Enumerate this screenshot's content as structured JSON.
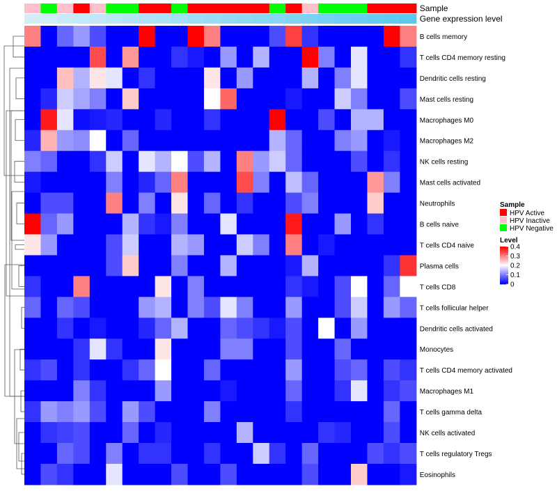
{
  "chart_data": {
    "type": "heatmap",
    "annotation_labels": {
      "sample": "Sample",
      "gene": "Gene expression level"
    },
    "sample_groups": [
      "Inactive",
      "Negative",
      "Inactive",
      "Active",
      "Inactive",
      "Negative",
      "Negative",
      "Active",
      "Active",
      "Negative",
      "Active",
      "Active",
      "Active",
      "Active",
      "Active",
      "Negative",
      "Active",
      "Inactive",
      "Negative",
      "Negative",
      "Negative",
      "Active",
      "Active",
      "Active"
    ],
    "sample_colors": {
      "Active": "#ff0000",
      "Inactive": "#ffc0cb",
      "Negative": "#00ff00"
    },
    "gene_level_start_color": "#d4eef8",
    "gene_level_end_color": "#5bc8f0",
    "rows": [
      "B cells memory",
      "T cells CD4 memory resting",
      "Dendritic cells resting",
      "Mast cells resting",
      "Macrophages M0",
      "Macrophages M2",
      "NK cells resting",
      "Mast cells activated",
      "Neutrophils",
      "B cells naive",
      "T cells CD4 naive",
      "Plasma cells",
      "T cells CD8",
      "T cells follicular helper",
      "Dendritic cells activated",
      "Monocytes",
      "T cells CD4 memory activated",
      "Macrophages M1",
      "T cells gamma delta",
      "NK cells activated",
      "T cells regulatory  Tregs",
      "Eosinophils"
    ],
    "values": [
      [
        0.3,
        0.0,
        0.08,
        0.12,
        0.06,
        0.0,
        0.0,
        0.4,
        0.0,
        0.0,
        0.4,
        0.3,
        0.0,
        0.0,
        0.0,
        0.06,
        0.35,
        0.04,
        0.0,
        0.0,
        0.0,
        0.0,
        0.4,
        0.3
      ],
      [
        0.0,
        0.0,
        0.0,
        0.0,
        0.34,
        0.0,
        0.28,
        0.0,
        0.0,
        0.04,
        0.02,
        0.0,
        0.12,
        0.0,
        0.14,
        0.0,
        0.0,
        0.4,
        0.1,
        0.0,
        0.18,
        0.0,
        0.0,
        0.04
      ],
      [
        0.0,
        0.0,
        0.25,
        0.14,
        0.22,
        0.18,
        0.0,
        0.04,
        0.0,
        0.0,
        0.0,
        0.22,
        0.0,
        0.12,
        0.0,
        0.0,
        0.0,
        0.14,
        0.0,
        0.1,
        0.18,
        0.0,
        0.0,
        0.0
      ],
      [
        0.0,
        0.03,
        0.16,
        0.13,
        0.1,
        0.0,
        0.24,
        0.0,
        0.0,
        0.0,
        0.0,
        0.2,
        0.32,
        0.0,
        0.0,
        0.0,
        0.02,
        0.0,
        0.0,
        0.16,
        0.1,
        0.0,
        0.0,
        0.06
      ],
      [
        0.0,
        0.38,
        0.18,
        0.01,
        0.02,
        0.03,
        0.0,
        0.0,
        0.03,
        0.0,
        0.0,
        0.04,
        0.0,
        0.0,
        0.0,
        0.4,
        0.0,
        0.0,
        0.06,
        0.0,
        0.14,
        0.14,
        0.0,
        0.0
      ],
      [
        0.03,
        0.26,
        0.12,
        0.11,
        0.2,
        0.0,
        0.08,
        0.0,
        0.0,
        0.0,
        0.0,
        0.0,
        0.0,
        0.0,
        0.0,
        0.14,
        0.08,
        0.0,
        0.0,
        0.1,
        0.12,
        0.0,
        0.02,
        0.0
      ],
      [
        0.1,
        0.08,
        0.0,
        0.0,
        0.04,
        0.16,
        0.0,
        0.18,
        0.14,
        0.2,
        0.06,
        0.14,
        0.0,
        0.3,
        0.12,
        0.16,
        0.08,
        0.0,
        0.0,
        0.0,
        0.06,
        0.0,
        0.04,
        0.0
      ],
      [
        0.02,
        0.0,
        0.0,
        0.0,
        0.0,
        0.1,
        0.0,
        0.03,
        0.08,
        0.3,
        0.0,
        0.0,
        0.0,
        0.34,
        0.1,
        0.0,
        0.15,
        0.08,
        0.0,
        0.0,
        0.0,
        0.28,
        0.1,
        0.0
      ],
      [
        0.0,
        0.06,
        0.06,
        0.0,
        0.0,
        0.3,
        0.0,
        0.1,
        0.0,
        0.22,
        0.0,
        0.08,
        0.0,
        0.04,
        0.0,
        0.0,
        0.06,
        0.1,
        0.0,
        0.0,
        0.0,
        0.24,
        0.0,
        0.0
      ],
      [
        0.4,
        0.08,
        0.12,
        0.0,
        0.0,
        0.0,
        0.14,
        0.04,
        0.02,
        0.1,
        0.0,
        0.0,
        0.18,
        0.0,
        0.0,
        0.0,
        0.38,
        0.0,
        0.0,
        0.12,
        0.0,
        0.04,
        0.0,
        0.0
      ],
      [
        0.22,
        0.12,
        0.0,
        0.0,
        0.0,
        0.06,
        0.16,
        0.0,
        0.0,
        0.14,
        0.12,
        0.0,
        0.0,
        0.16,
        0.1,
        0.0,
        0.3,
        0.0,
        0.02,
        0.0,
        0.0,
        0.0,
        0.0,
        0.0
      ],
      [
        0.0,
        0.0,
        0.0,
        0.0,
        0.0,
        0.06,
        0.24,
        0.0,
        0.0,
        0.1,
        0.0,
        0.0,
        0.14,
        0.0,
        0.0,
        0.0,
        0.02,
        0.14,
        0.0,
        0.0,
        0.0,
        0.0,
        0.04,
        0.36
      ],
      [
        0.04,
        0.0,
        0.0,
        0.3,
        0.0,
        0.0,
        0.0,
        0.0,
        0.22,
        0.0,
        0.1,
        0.0,
        0.0,
        0.0,
        0.0,
        0.0,
        0.04,
        0.02,
        0.0,
        0.06,
        0.2,
        0.0,
        0.08,
        0.2
      ],
      [
        0.08,
        0.0,
        0.08,
        0.06,
        0.0,
        0.0,
        0.0,
        0.12,
        0.14,
        0.0,
        0.1,
        0.06,
        0.18,
        0.1,
        0.0,
        0.0,
        0.12,
        0.0,
        0.0,
        0.06,
        0.16,
        0.0,
        0.12,
        0.08
      ],
      [
        0.0,
        0.0,
        0.04,
        0.0,
        0.02,
        0.0,
        0.0,
        0.03,
        0.08,
        0.14,
        0.0,
        0.0,
        0.08,
        0.06,
        0.04,
        0.02,
        0.06,
        0.0,
        0.2,
        0.0,
        0.12,
        0.0,
        0.0,
        0.0
      ],
      [
        0.0,
        0.0,
        0.0,
        0.04,
        0.18,
        0.04,
        0.0,
        0.0,
        0.22,
        0.0,
        0.0,
        0.0,
        0.1,
        0.1,
        0.0,
        0.0,
        0.06,
        0.0,
        0.0,
        0.08,
        0.0,
        0.0,
        0.0,
        0.0
      ],
      [
        0.04,
        0.06,
        0.0,
        0.04,
        0.0,
        0.0,
        0.04,
        0.08,
        0.2,
        0.0,
        0.0,
        0.08,
        0.0,
        0.0,
        0.0,
        0.0,
        0.12,
        0.0,
        0.0,
        0.06,
        0.08,
        0.0,
        0.06,
        0.04
      ],
      [
        0.0,
        0.0,
        0.0,
        0.1,
        0.04,
        0.0,
        0.0,
        0.0,
        0.12,
        0.0,
        0.0,
        0.0,
        0.02,
        0.0,
        0.0,
        0.0,
        0.08,
        0.0,
        0.0,
        0.04,
        0.18,
        0.0,
        0.04,
        0.06
      ],
      [
        0.04,
        0.12,
        0.1,
        0.12,
        0.06,
        0.0,
        0.12,
        0.06,
        0.0,
        0.0,
        0.0,
        0.1,
        0.0,
        0.0,
        0.0,
        0.0,
        0.04,
        0.0,
        0.0,
        0.0,
        0.0,
        0.0,
        0.08,
        0.0
      ],
      [
        0.0,
        0.04,
        0.05,
        0.06,
        0.0,
        0.0,
        0.08,
        0.0,
        0.03,
        0.0,
        0.0,
        0.0,
        0.0,
        0.14,
        0.0,
        0.0,
        0.0,
        0.0,
        0.04,
        0.03,
        0.0,
        0.0,
        0.06,
        0.0
      ],
      [
        0.0,
        0.0,
        0.08,
        0.06,
        0.0,
        0.1,
        0.0,
        0.04,
        0.04,
        0.0,
        0.0,
        0.04,
        0.0,
        0.0,
        0.16,
        0.04,
        0.0,
        0.08,
        0.0,
        0.0,
        0.0,
        0.06,
        0.04,
        0.06
      ],
      [
        0.0,
        0.06,
        0.04,
        0.0,
        0.0,
        0.18,
        0.0,
        0.0,
        0.0,
        0.06,
        0.0,
        0.0,
        0.06,
        0.0,
        0.0,
        0.0,
        0.0,
        0.06,
        0.0,
        0.0,
        0.24,
        0.0,
        0.0,
        0.02
      ]
    ],
    "legend": {
      "sample_title": "Sample",
      "sample_entries": [
        {
          "label": "HPV Active",
          "color": "#ff0000"
        },
        {
          "label": "HPV Inactive",
          "color": "#ffc0cb"
        },
        {
          "label": "HPV Negative",
          "color": "#00ff00"
        }
      ],
      "level_title": "Level",
      "level_ticks": [
        "0.4",
        "0.3",
        "0.2",
        "0.1",
        "0"
      ],
      "level_range": [
        0,
        0.4
      ]
    },
    "color_scale": {
      "low": "#0000ff",
      "mid": "#ffffff",
      "high": "#ff0000",
      "mid_value": 0.2
    }
  }
}
